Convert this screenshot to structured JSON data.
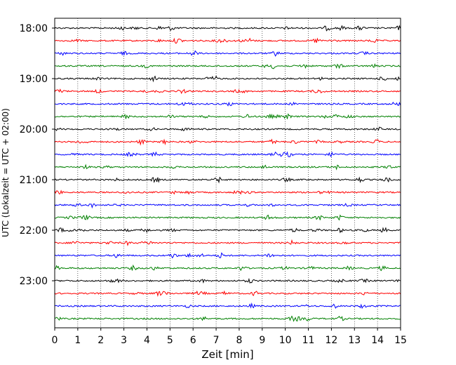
{
  "chart_data": {
    "type": "line",
    "title": "",
    "xlabel": "Zeit  [min]",
    "ylabel": "UTC (Lokalzeit = UTC + 02:00)",
    "xlim": [
      0,
      15
    ],
    "x_ticks": [
      0,
      1,
      2,
      3,
      4,
      5,
      6,
      7,
      8,
      9,
      10,
      11,
      12,
      13,
      14,
      15
    ],
    "y_tick_labels": [
      "18:00",
      "19:00",
      "20:00",
      "21:00",
      "22:00",
      "23:00"
    ],
    "y_tick_trace_index": [
      0,
      4,
      8,
      12,
      16,
      20
    ],
    "trace_interval_min": 15,
    "trace_start": "18:00",
    "trace_count": 24,
    "trace_colors": [
      "#000000",
      "#ff0000",
      "#0000ff",
      "#008000"
    ],
    "vertical_grid": "dotted",
    "legend": "none"
  }
}
